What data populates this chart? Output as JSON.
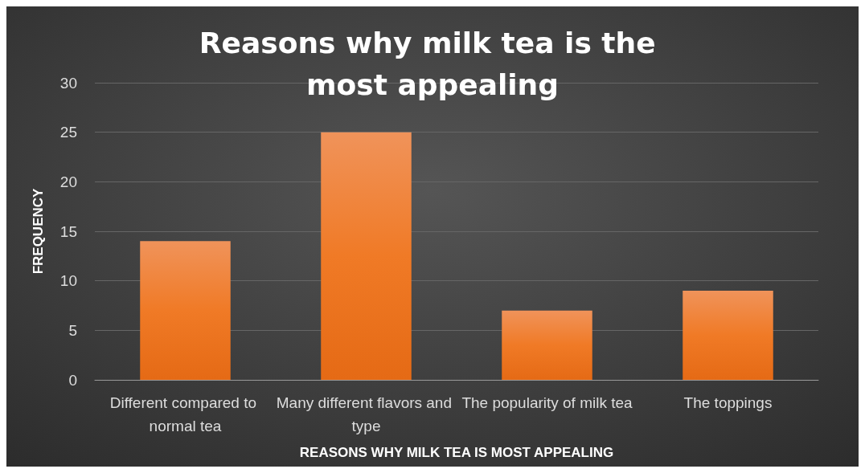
{
  "chart_data": {
    "type": "bar",
    "title": "Reasons why milk tea is the most appealing",
    "xlabel": "REASONS WHY MILK TEA IS MOST APPEALING",
    "ylabel": "FREQUENCY",
    "categories": [
      "Different compared to normal tea",
      "Many different flavors and type",
      "The popularity of milk tea",
      "The toppings"
    ],
    "values": [
      14,
      25,
      7,
      9
    ],
    "color": "#f07a26",
    "ylim": [
      0,
      30
    ],
    "yticks": [
      0,
      5,
      10,
      15,
      20,
      25,
      30
    ],
    "grid": "y"
  }
}
